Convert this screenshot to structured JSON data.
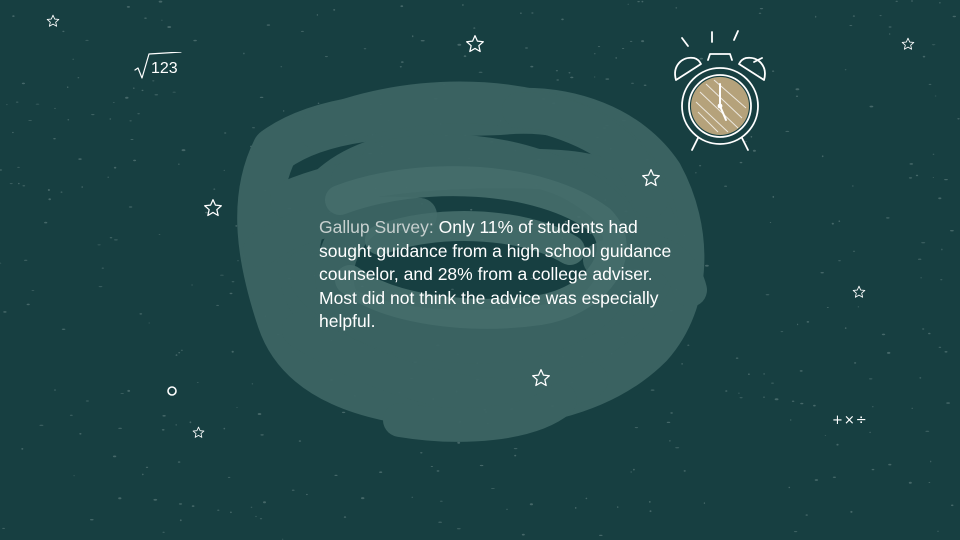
{
  "slide": {
    "lead": "Gallup Survey:",
    "body": " Only 11% of students had sought guidance from a high school guidance counselor, and 28% from a college adviser. Most did not think the advice was especially helpful."
  },
  "decorations": {
    "sqrt_text": "123",
    "math_ops": "+×÷"
  },
  "colors": {
    "background": "#173f41",
    "scribble": "#3c6463",
    "chalk": "#ffffff",
    "clock_face": "#b5a27b"
  },
  "icons": [
    "star-icon",
    "alarm-clock-icon",
    "square-root-icon",
    "circle-icon",
    "math-operators-icon"
  ]
}
